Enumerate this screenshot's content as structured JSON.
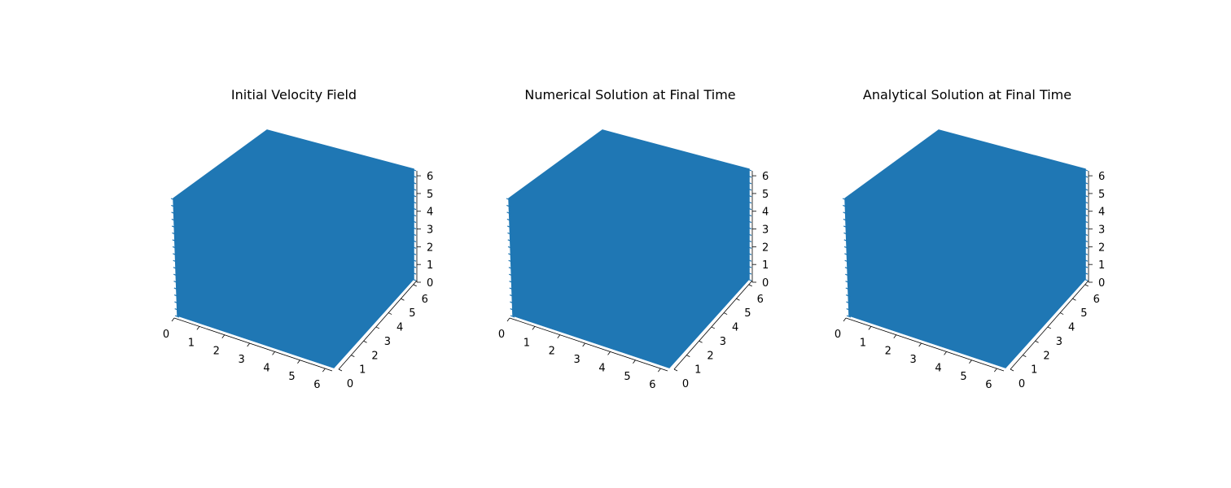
{
  "figure": {
    "background": "#ffffff",
    "mark_color": "#1f77b4",
    "pane_color": "#f2f2f2",
    "pane_edge_color": "#d6d6d6",
    "grid_color": "#d9d9d9",
    "tick_color": "#000000"
  },
  "chart_data": [
    {
      "type": "quiver3d",
      "title": "Initial Velocity Field",
      "xlabel": "",
      "ylabel": "",
      "zlabel": "",
      "xticks": [
        "0",
        "1",
        "2",
        "3",
        "4",
        "5",
        "6"
      ],
      "yticks": [
        "0",
        "1",
        "2",
        "3",
        "4",
        "5",
        "6"
      ],
      "zticks": [
        "0",
        "1",
        "2",
        "3",
        "4",
        "5",
        "6"
      ],
      "xlim": [
        0,
        6.28
      ],
      "ylim": [
        0,
        6.28
      ],
      "zlim": [
        0,
        6.28
      ],
      "grid": true,
      "series": [
        {
          "color": "#1f77b4"
        }
      ]
    },
    {
      "type": "quiver3d",
      "title": "Numerical Solution at Final Time",
      "xlabel": "",
      "ylabel": "",
      "zlabel": "",
      "xticks": [
        "0",
        "1",
        "2",
        "3",
        "4",
        "5",
        "6"
      ],
      "yticks": [
        "0",
        "1",
        "2",
        "3",
        "4",
        "5",
        "6"
      ],
      "zticks": [
        "0",
        "1",
        "2",
        "3",
        "4",
        "5",
        "6"
      ],
      "xlim": [
        0,
        6.28
      ],
      "ylim": [
        0,
        6.28
      ],
      "zlim": [
        0,
        6.28
      ],
      "grid": true,
      "series": [
        {
          "color": "#1f77b4"
        }
      ]
    },
    {
      "type": "quiver3d",
      "title": "Analytical Solution at Final Time",
      "xlabel": "",
      "ylabel": "",
      "zlabel": "",
      "xticks": [
        "0",
        "1",
        "2",
        "3",
        "4",
        "5",
        "6"
      ],
      "yticks": [
        "0",
        "1",
        "2",
        "3",
        "4",
        "5",
        "6"
      ],
      "zticks": [
        "0",
        "1",
        "2",
        "3",
        "4",
        "5",
        "6"
      ],
      "xlim": [
        0,
        6.28
      ],
      "ylim": [
        0,
        6.28
      ],
      "zlim": [
        0,
        6.28
      ],
      "grid": true,
      "series": [
        {
          "color": "#1f77b4"
        }
      ]
    }
  ]
}
